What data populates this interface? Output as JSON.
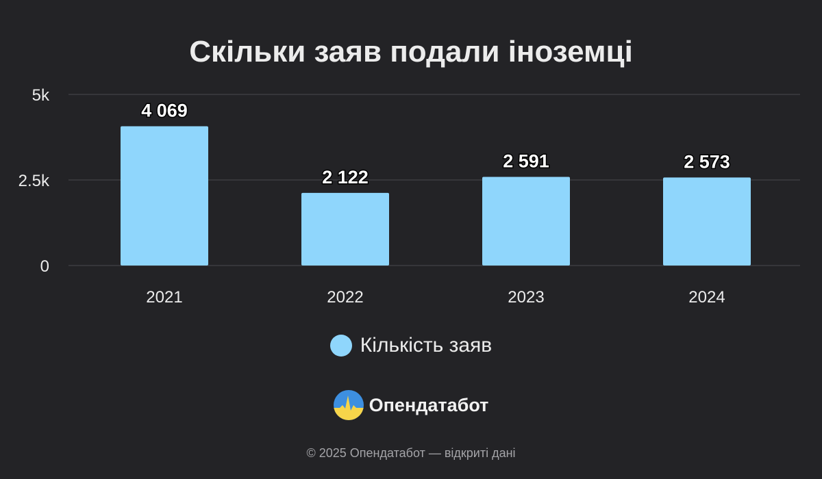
{
  "chart_data": {
    "type": "bar",
    "title": "Скільки заяв подали іноземці",
    "categories": [
      "2021",
      "2022",
      "2023",
      "2024"
    ],
    "series": [
      {
        "name": "Кількість заяв",
        "values": [
          4069,
          2122,
          2591,
          2573
        ],
        "value_labels": [
          "4 069",
          "2 122",
          "2 591",
          "2 573"
        ],
        "color": "#8fd6fc"
      }
    ],
    "ylim": [
      0,
      5000
    ],
    "yticks": [
      0,
      2500,
      5000
    ],
    "ytick_labels": [
      "0",
      "2.5k",
      "5k"
    ],
    "grid": true,
    "legend_position": "bottom-center"
  },
  "colors": {
    "background": "#232326",
    "bar": "#8fd6fc",
    "gridline": "#4a4a4e",
    "text": "#ececec"
  },
  "brand": {
    "name": "Опендатабот",
    "logo_icon": "opendatabot-logo-icon"
  },
  "footer": {
    "copyright": "© 2025 Опендатабот — відкриті дані"
  }
}
